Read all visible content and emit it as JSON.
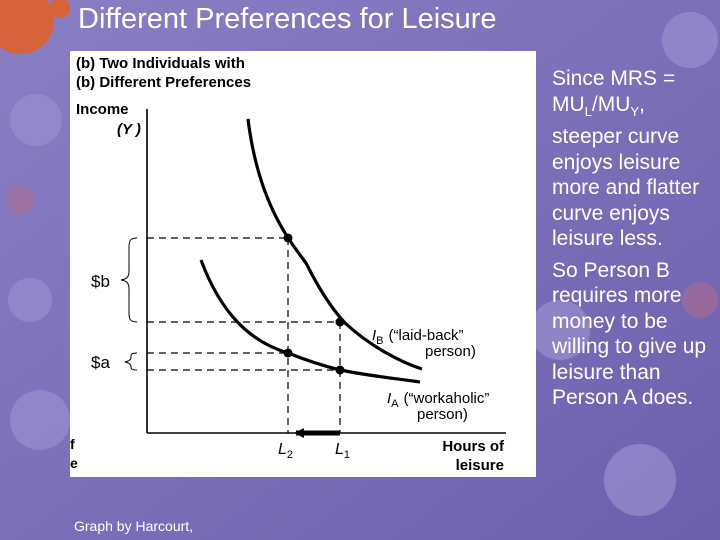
{
  "slide": {
    "title": "Different Preferences for Leisure",
    "credit": "Graph by Harcourt,"
  },
  "figure": {
    "heading_line1": "(b)  Two Individuals with",
    "heading_line2": "(b)  Different Preferences",
    "y_axis_label_line1": "Income",
    "y_axis_label_line2": "(Y )",
    "x_axis_label_line1": "Hours of",
    "x_axis_label_line2": "leisure",
    "brace_b_label": "$b",
    "brace_a_label": "$a",
    "curve_b": {
      "symbol": "I",
      "sub": "B",
      "text": "(“laid-back”",
      "text2": "person)"
    },
    "curve_a": {
      "symbol": "I",
      "sub": "A",
      "text": "(“workaholic”",
      "text2": "person)"
    },
    "tick_l2": {
      "symbol": "L",
      "sub": "2"
    },
    "tick_l1": {
      "symbol": "L",
      "sub": "1"
    },
    "edge_fragment_1": "f",
    "edge_fragment_2": "e"
  },
  "explanation": {
    "p1_prefix": "Since MRS = MU",
    "p1_sub1": "L",
    "p1_mid": "/MU",
    "p1_sub2": "Y",
    "p1_rest": ", steeper curve enjoys leisure more and flatter curve enjoys leisure less.",
    "p2": "So Person B requires more money to be willing to give up leisure than Person A does."
  },
  "colors": {
    "background": "#7f74b9",
    "gear_orange": "#e0622a",
    "gear_purple": "#9a8fd0",
    "text": "#ffffff",
    "graph_ink": "#000000"
  }
}
